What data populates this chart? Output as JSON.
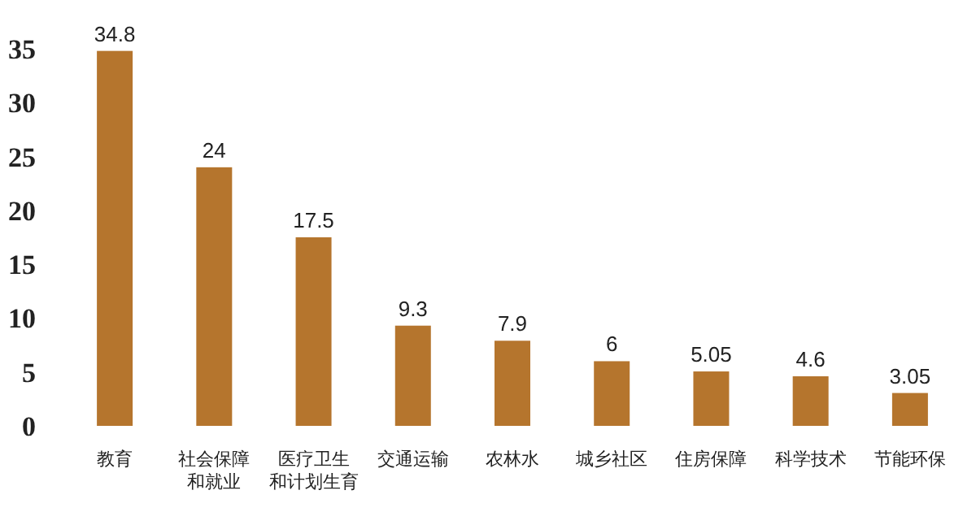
{
  "chart_data": {
    "type": "bar",
    "categories": [
      "教育",
      "社会保障和就业",
      "医疗卫生和计划生育",
      "交通运输",
      "农林水",
      "城乡社区",
      "住房保障",
      "科学技术",
      "节能环保"
    ],
    "values": [
      34.8,
      24,
      17.5,
      9.3,
      7.9,
      6,
      5.05,
      4.6,
      3.05
    ],
    "color": "#b5752d",
    "ylim": [
      0,
      35
    ],
    "yticks": [
      0,
      5,
      10,
      15,
      20,
      25,
      30,
      35
    ],
    "data_labels": true,
    "grid": false
  }
}
